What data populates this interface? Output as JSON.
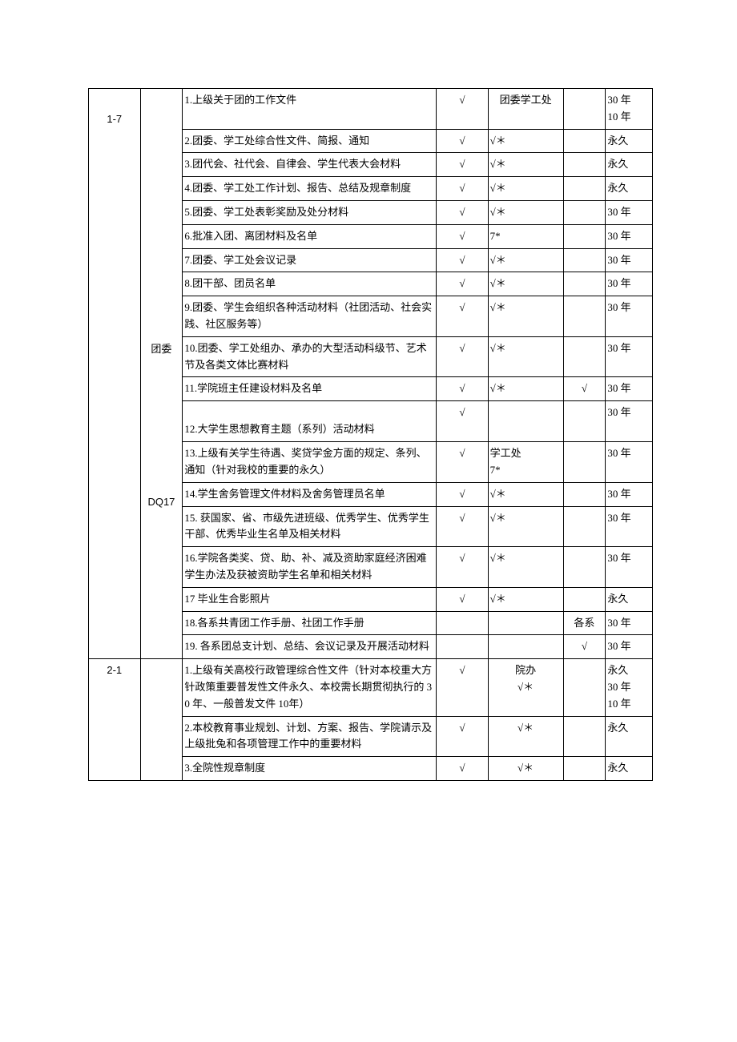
{
  "section1": {
    "codeA": "1-7",
    "labelB1": "团委",
    "labelB2": "DQ17",
    "rows": [
      {
        "desc": "1.上级关于团的工作文件",
        "d": "√",
        "e": "团委学工处",
        "f": "",
        "g": "30 年\n10 年"
      },
      {
        "desc": "2.团委、学工处综合性文件、简报、通知",
        "d": "√",
        "e": "√＊",
        "f": "",
        "g": "永久"
      },
      {
        "desc": "3.团代会、社代会、自律会、学生代表大会材料",
        "d": "√",
        "e": "√＊",
        "f": "",
        "g": "永久"
      },
      {
        "desc": "4.团委、学工处工作计划、报告、总结及规章制度",
        "d": "√",
        "e": "√＊",
        "f": "",
        "g": "永久"
      },
      {
        "desc": "5.团委、学工处表彰奖励及处分材料",
        "d": "√",
        "e": "√＊",
        "f": "",
        "g": "30 年"
      },
      {
        "desc": "6.批准入团、离团材料及名单",
        "d": "√",
        "e": "7*",
        "f": "",
        "g": "30 年"
      },
      {
        "desc": "7.团委、学工处会议记录",
        "d": "√",
        "e": "√＊",
        "f": "",
        "g": "30 年"
      },
      {
        "desc": "8.团干部、团员名单",
        "d": "√",
        "e": "√＊",
        "f": "",
        "g": "30 年"
      },
      {
        "desc": "9.团委、学生会组织各种活动材料（社团活动、社会实践、社区服务等）",
        "d": "√",
        "e": "√＊",
        "f": "",
        "g": "30 年"
      },
      {
        "desc": "10.团委、学工处组办、承办的大型活动科级节、艺术节及各类文体比赛材料",
        "d": "√",
        "e": "√＊",
        "f": "",
        "g": "30 年"
      },
      {
        "desc": "11.学院班主任建设材料及名单",
        "d": "√",
        "e": "√＊",
        "f": "√",
        "g": "30 年"
      },
      {
        "desc": "12.大学生思想教育主题（系列）活动材料",
        "d": "√",
        "e": "",
        "f": "",
        "g": "30 年",
        "descBottom": true
      },
      {
        "desc": "13.上级有关学生待遇、奖贷学金方面的规定、条列、通知（针对我校的重要的永久）",
        "d": "√",
        "e": "学工处\n7*",
        "f": "",
        "g": "30 年"
      },
      {
        "desc": "14.学生舍务管理文件材料及舍务管理员名单",
        "d": "√",
        "e": "√＊",
        "f": "",
        "g": "30 年"
      },
      {
        "desc": "15. 获国家、省、市级先进班级、优秀学生、优秀学生干部、优秀毕业生名单及相关材料",
        "d": "√",
        "e": "√＊",
        "f": "",
        "g": "30 年"
      },
      {
        "desc": "16.学院各类奖、贷、助、补、减及资助家庭经济困难学生办法及获被资助学生名单和相关材料",
        "d": "√",
        "e": "√＊",
        "f": "",
        "g": "30 年"
      },
      {
        "desc": "17 毕业生合影照片",
        "d": "√",
        "e": "√＊",
        "f": "",
        "g": "永久"
      },
      {
        "desc": "18.各系共青团工作手册、社团工作手册",
        "d": "",
        "e": "",
        "f": "各系",
        "g": "30 年"
      },
      {
        "desc": "19. 各系团总支计划、总结、会议记录及开展活动材料",
        "d": "",
        "e": "",
        "f": "√",
        "g": "30 年"
      }
    ]
  },
  "section2": {
    "codeA": "2-1",
    "rows": [
      {
        "desc": "1.上级有关高校行政管理综合性文件（针对本校重大方针政策重要普发性文件永久、本校需长期贯彻执行的 30 年、一般普发文件 10年）",
        "d": "√",
        "e": "院办\n√＊",
        "f": "",
        "g": "永久\n30 年\n10 年"
      },
      {
        "desc": "2.本校教育事业规划、计划、方案、报告、学院请示及上级批兔和各项管理工作中的重要材料",
        "d": "√",
        "e": "√＊",
        "f": "",
        "g": "永久"
      },
      {
        "desc": "3.全院性规章制度",
        "d": "√",
        "e": "√＊",
        "f": "",
        "g": "永久"
      }
    ]
  }
}
